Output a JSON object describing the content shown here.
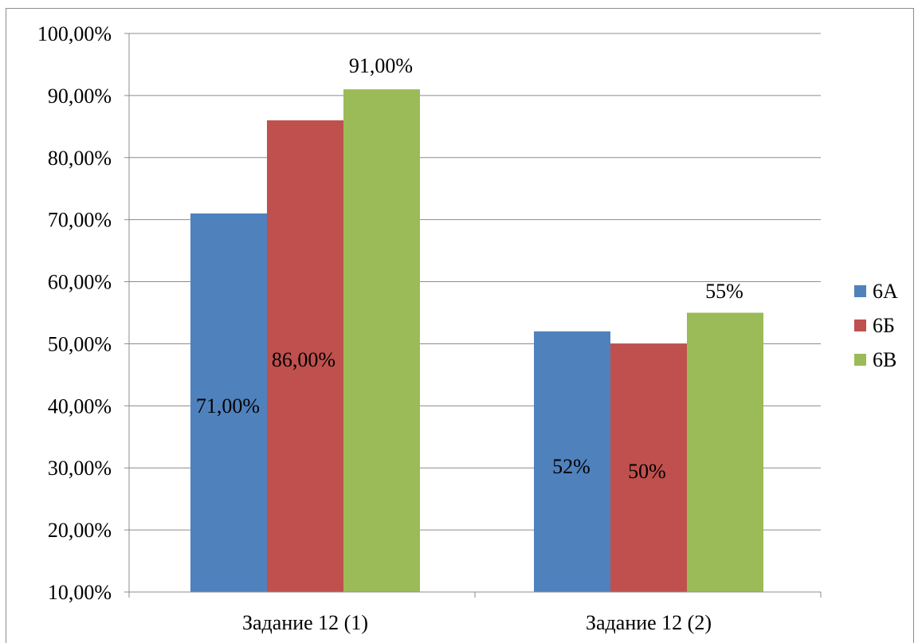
{
  "chart_data": {
    "type": "bar",
    "categories": [
      "Задание 12 (1)",
      "Задание 12 (2)"
    ],
    "series": [
      {
        "name": "6А",
        "color": "#4f81bd",
        "values": [
          71,
          52
        ],
        "labels": [
          "71,00%",
          "52%"
        ]
      },
      {
        "name": "6Б",
        "color": "#c0504d",
        "values": [
          86,
          50
        ],
        "labels": [
          "86,00%",
          "50%"
        ]
      },
      {
        "name": "6В",
        "color": "#9bbb59",
        "values": [
          91,
          55
        ],
        "labels": [
          "91,00%",
          "55%"
        ]
      }
    ],
    "ylim": [
      10,
      100
    ],
    "yticks": [
      10,
      20,
      30,
      40,
      50,
      60,
      70,
      80,
      90,
      100
    ],
    "ytick_labels": [
      "10,00%",
      "20,00%",
      "30,00%",
      "40,00%",
      "50,00%",
      "60,00%",
      "70,00%",
      "80,00%",
      "90,00%",
      "100,00%"
    ],
    "grid": true,
    "legend_position": "right"
  }
}
